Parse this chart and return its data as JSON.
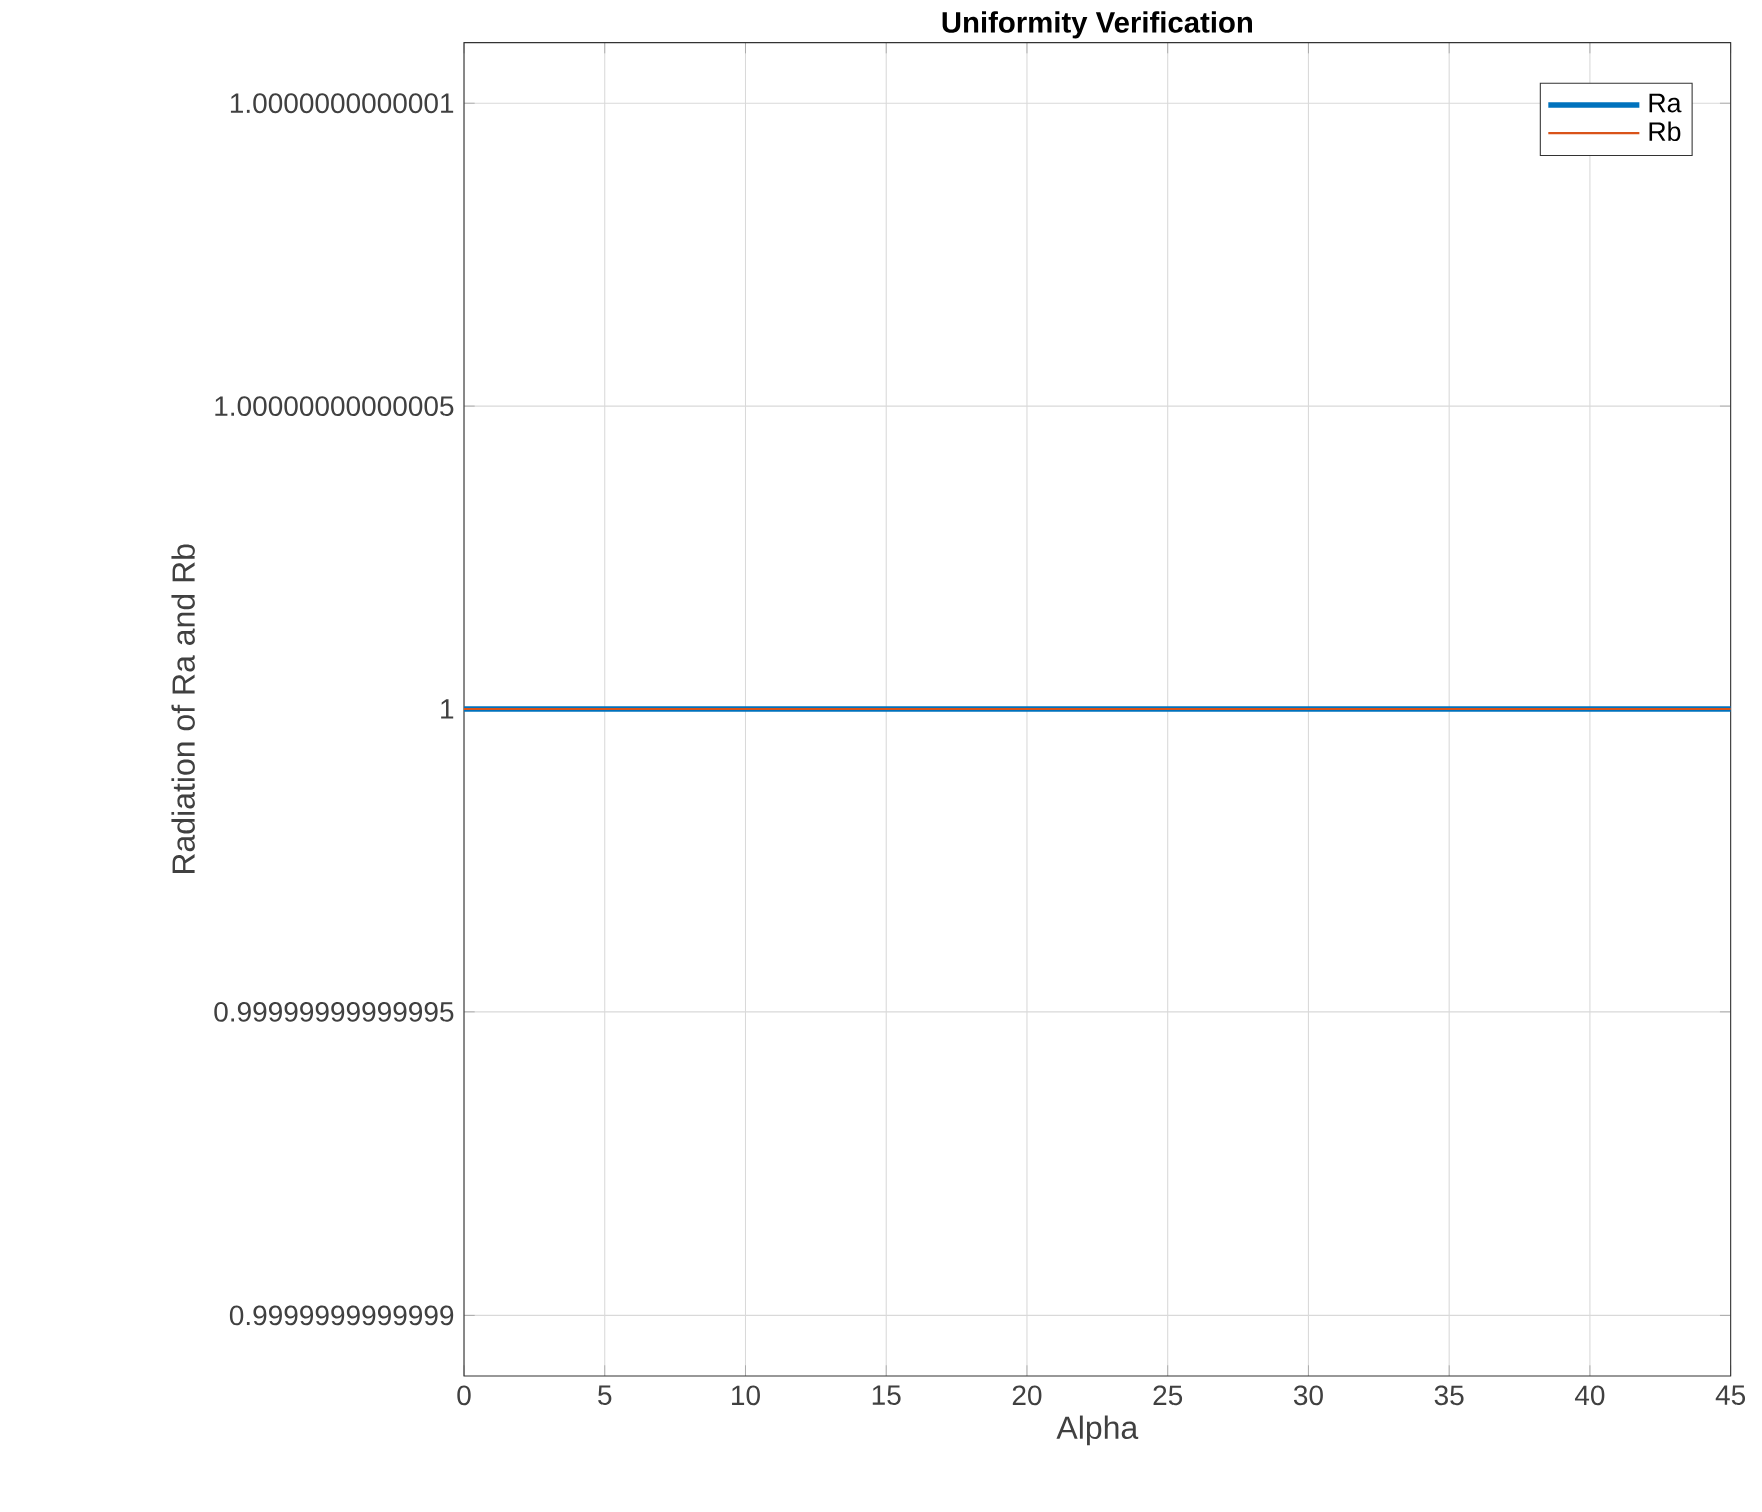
{
  "chart_data": {
    "type": "line",
    "title": "Uniformity Verification",
    "xlabel": "Alpha",
    "ylabel": "Radiation of Ra and Rb",
    "x": [
      0,
      45
    ],
    "series": [
      {
        "name": "Ra",
        "color": "#0072bd",
        "values": [
          1,
          1
        ]
      },
      {
        "name": "Rb",
        "color": "#d95319",
        "values": [
          1,
          1
        ]
      }
    ],
    "xlim": [
      0,
      45
    ],
    "xticks": [
      0,
      5,
      10,
      15,
      20,
      25,
      30,
      35,
      40,
      45
    ],
    "ylim": [
      0.99999999999989,
      1.00000000000011
    ],
    "yticks": [
      {
        "value": 0.9999999999999,
        "label": "0.9999999999999"
      },
      {
        "value": 0.99999999999995,
        "label": "0.99999999999995"
      },
      {
        "value": 1,
        "label": "1"
      },
      {
        "value": 1.00000000000005,
        "label": "1.00000000000005"
      },
      {
        "value": 1.0000000000001,
        "label": "1.0000000000001"
      }
    ],
    "grid": true,
    "legend": "top right",
    "marker": "none",
    "line_style": "solid"
  }
}
